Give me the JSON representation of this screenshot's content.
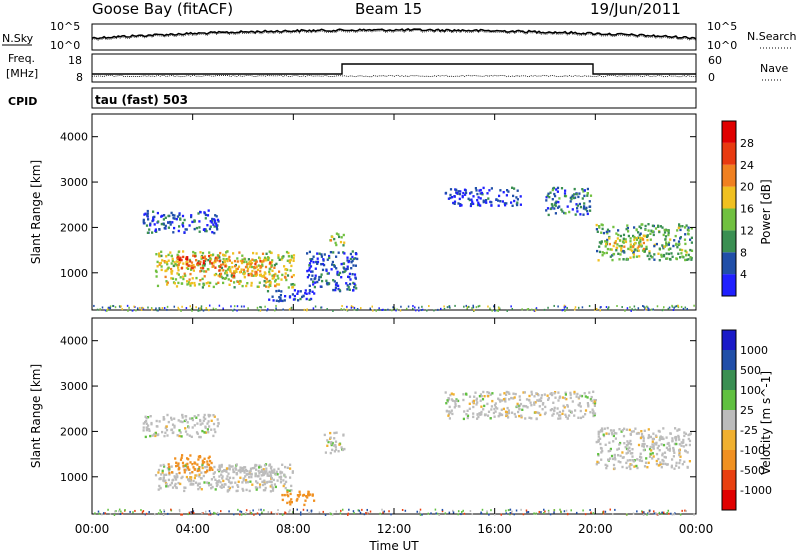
{
  "header": {
    "station": "Goose Bay (fitACF)",
    "beam": "Beam 15",
    "date": "19/Jun/2011"
  },
  "noise_panel": {
    "left_label": "N.Sky",
    "right_label": "N.Search",
    "ytick_top": "10^5",
    "ytick_bottom": "10^0"
  },
  "freq_panel": {
    "left_label_line1": "Freq.",
    "left_label_line2": "[MHz]",
    "right_label": "Nave",
    "left_ticks": [
      "18",
      "8"
    ],
    "right_ticks": [
      "60",
      "0"
    ]
  },
  "cpid": {
    "label": "CPID",
    "value": "tau (fast) 503"
  },
  "colors": {
    "power_scale": [
      "#2020ff",
      "#204fa8",
      "#3a8f52",
      "#70c040",
      "#f0c020",
      "#f08020",
      "#e83a10",
      "#e00000"
    ],
    "velocity_scale": [
      "#e00000",
      "#e84010",
      "#f09020",
      "#f0b030",
      "#bcbcbc",
      "#60c040",
      "#3a8f52",
      "#204fa8",
      "#1a1ac8"
    ]
  },
  "chart_data": [
    {
      "type": "heatmap",
      "panel": "power",
      "ylabel": "Slant Range [km]",
      "ylim": [
        180,
        4500
      ],
      "yticks": [
        "1000",
        "2000",
        "3000",
        "4000"
      ],
      "xlim_hours": [
        0,
        24
      ],
      "colorbar": {
        "label": "Power [dB]",
        "ticks": [
          "4",
          "8",
          "12",
          "16",
          "20",
          "24",
          "28"
        ]
      },
      "regions": [
        {
          "t": [
            2.5,
            8.0
          ],
          "r": [
            700,
            1500
          ],
          "value": 18
        },
        {
          "t": [
            3.3,
            5.0
          ],
          "r": [
            1100,
            1400
          ],
          "value": 26
        },
        {
          "t": [
            5.0,
            7.2
          ],
          "r": [
            900,
            1300
          ],
          "value": 22
        },
        {
          "t": [
            2.0,
            5.0
          ],
          "r": [
            1900,
            2400
          ],
          "value": 8
        },
        {
          "t": [
            6.8,
            8.8
          ],
          "r": [
            400,
            650
          ],
          "value": 6
        },
        {
          "t": [
            9.4,
            10.0
          ],
          "r": [
            1600,
            1900
          ],
          "value": 18
        },
        {
          "t": [
            8.5,
            10.5
          ],
          "r": [
            600,
            1500
          ],
          "value": 8
        },
        {
          "t": [
            18.0,
            19.8
          ],
          "r": [
            2300,
            2900
          ],
          "value": 10
        },
        {
          "t": [
            14.0,
            17.0
          ],
          "r": [
            2500,
            2900
          ],
          "value": 6
        },
        {
          "t": [
            20.0,
            23.8
          ],
          "r": [
            1300,
            2100
          ],
          "value": 14
        },
        {
          "t": [
            20.5,
            22.0
          ],
          "r": [
            1500,
            1800
          ],
          "value": 20
        }
      ]
    },
    {
      "type": "heatmap",
      "panel": "velocity",
      "ylabel": "Slant Range [km]",
      "ylim": [
        180,
        4500
      ],
      "yticks": [
        "1000",
        "2000",
        "3000",
        "4000"
      ],
      "xlabel": "Time UT",
      "xticks": [
        "00:00",
        "04:00",
        "08:00",
        "12:00",
        "16:00",
        "20:00",
        "00:00"
      ],
      "xlim_hours": [
        0,
        24
      ],
      "colorbar": {
        "label": "Velocity [m s^-1]",
        "ticks": [
          "1000",
          "500",
          "100",
          "25",
          "-25",
          "-100",
          "-500",
          "-1000"
        ]
      },
      "regions": [
        {
          "t": [
            2.5,
            8.0
          ],
          "r": [
            700,
            1300
          ],
          "value": 0
        },
        {
          "t": [
            3.0,
            4.8
          ],
          "r": [
            1100,
            1500
          ],
          "value": -300
        },
        {
          "t": [
            5.0,
            7.2
          ],
          "r": [
            900,
            1300
          ],
          "value": 0
        },
        {
          "t": [
            7.5,
            8.8
          ],
          "r": [
            400,
            700
          ],
          "value": -300
        },
        {
          "t": [
            2.0,
            5.0
          ],
          "r": [
            1900,
            2400
          ],
          "value": 0
        },
        {
          "t": [
            9.2,
            10.0
          ],
          "r": [
            1500,
            2000
          ],
          "value": 0
        },
        {
          "t": [
            14.0,
            20.0
          ],
          "r": [
            2300,
            2900
          ],
          "value": 0
        },
        {
          "t": [
            20.0,
            23.8
          ],
          "r": [
            1200,
            2100
          ],
          "value": 0
        }
      ]
    }
  ]
}
